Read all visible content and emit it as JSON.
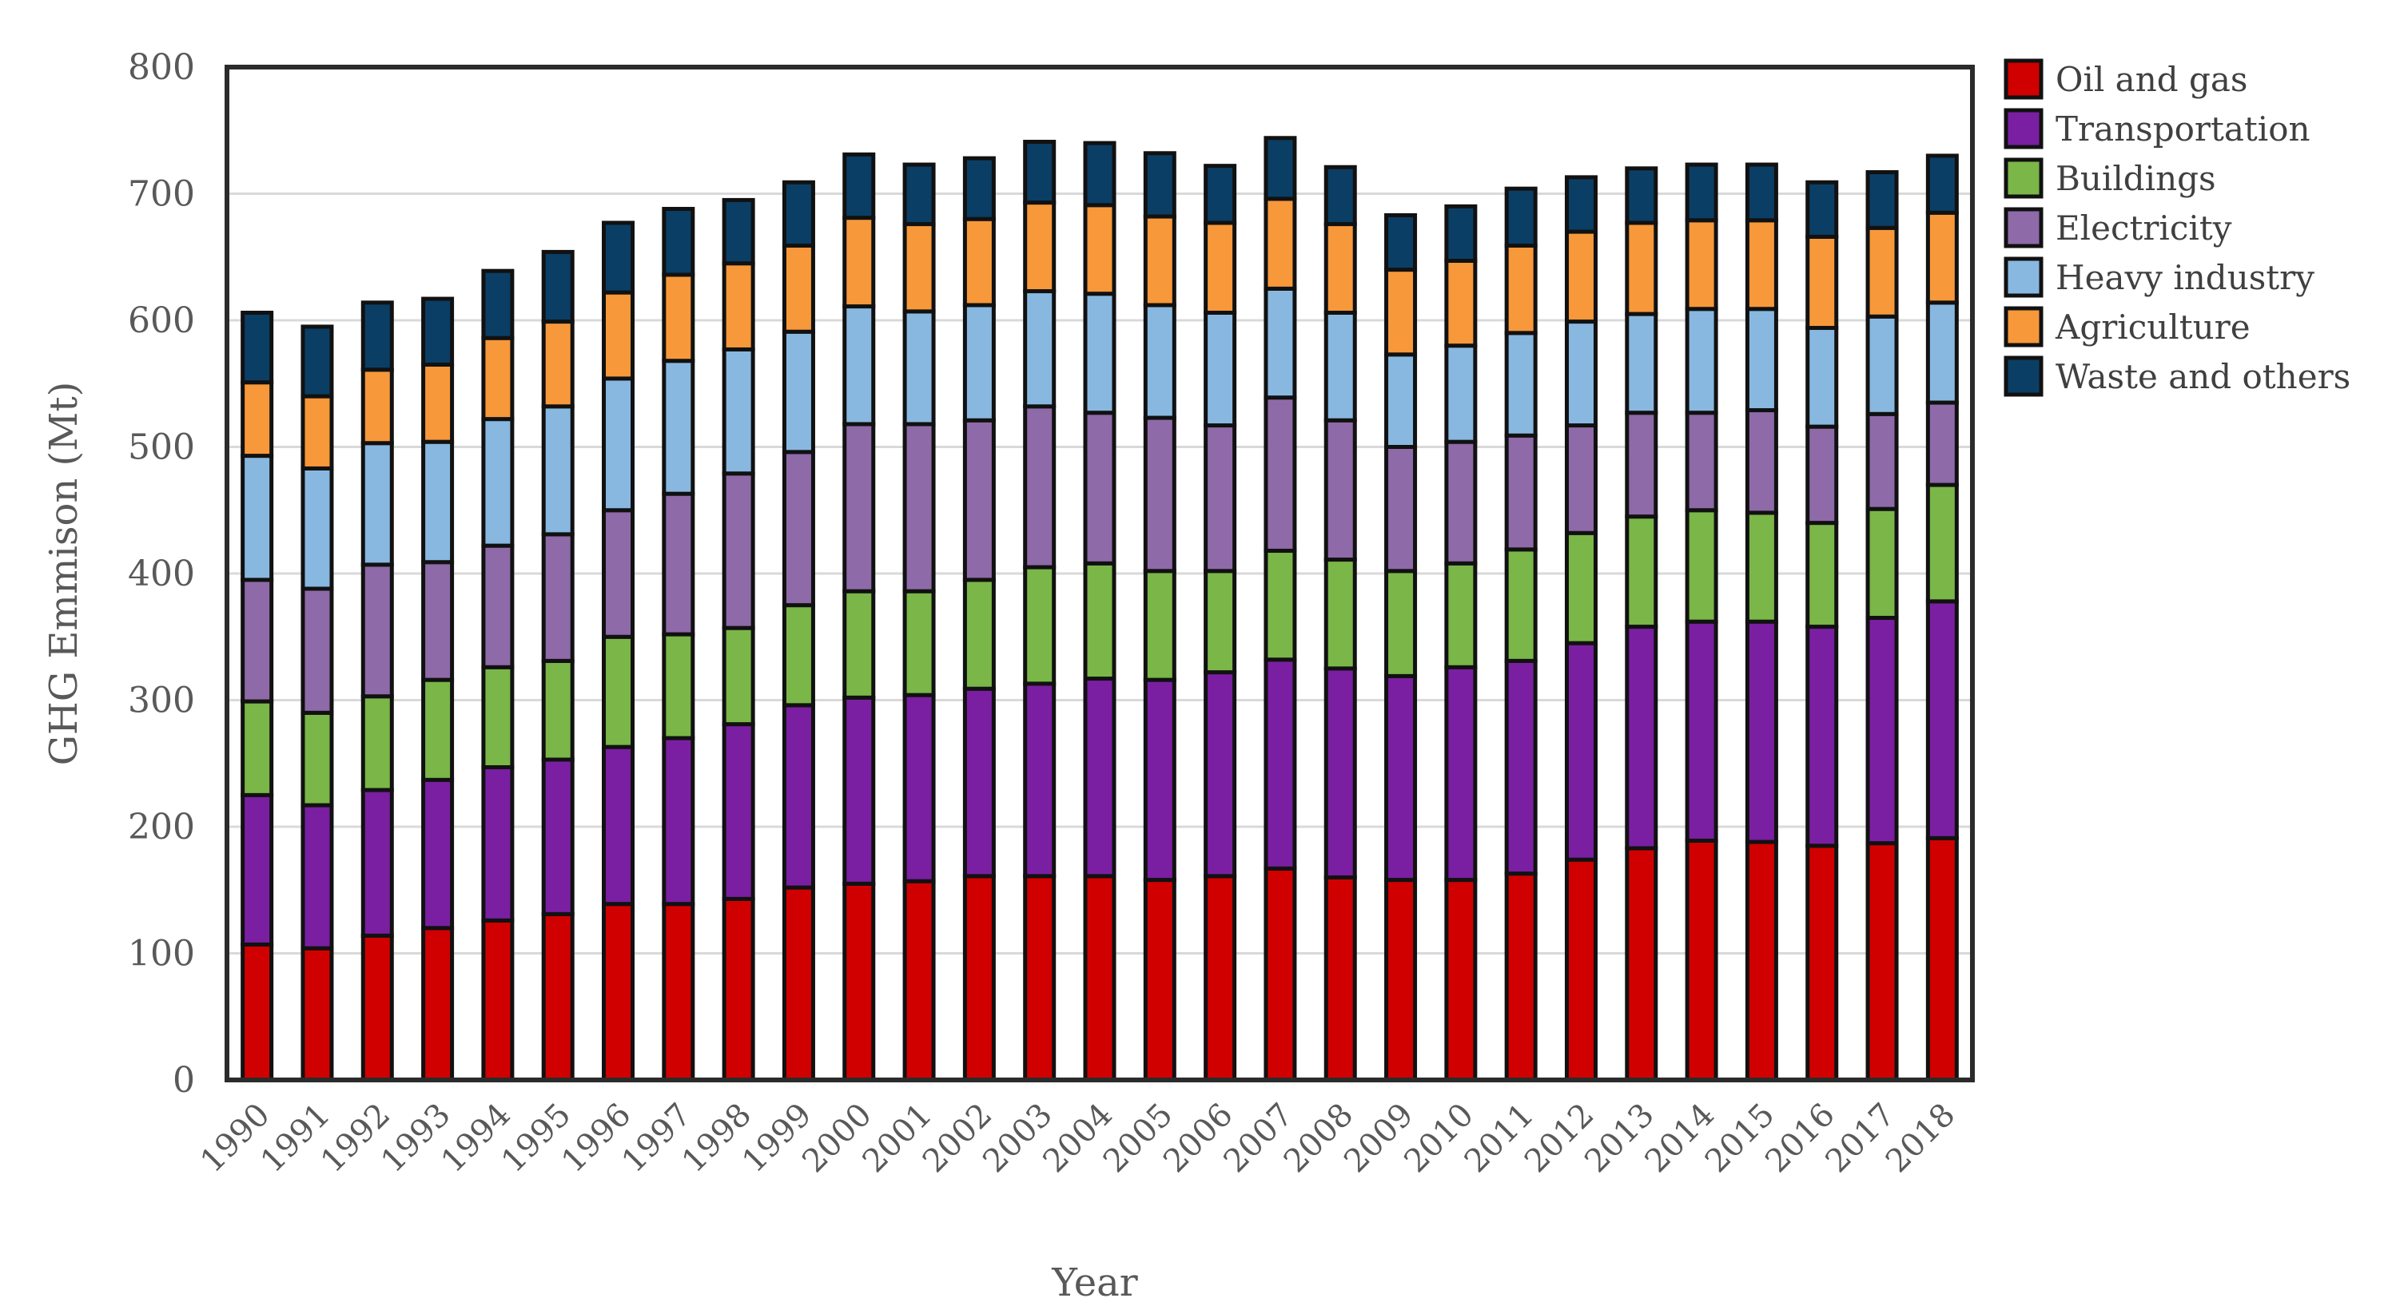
{
  "chart_data": {
    "type": "bar",
    "stacked": true,
    "title": "",
    "xlabel": "Year",
    "ylabel": "GHG Emmison (Mt)",
    "ylim": [
      0,
      800
    ],
    "yticks": [
      0,
      100,
      200,
      300,
      400,
      500,
      600,
      700,
      800
    ],
    "grid": true,
    "legend_position": "right",
    "categories": [
      "1990",
      "1991",
      "1992",
      "1993",
      "1994",
      "1995",
      "1996",
      "1997",
      "1998",
      "1999",
      "2000",
      "2001",
      "2002",
      "2003",
      "2004",
      "2005",
      "2006",
      "2007",
      "2008",
      "2009",
      "2010",
      "2011",
      "2012",
      "2013",
      "2014",
      "2015",
      "2016",
      "2017",
      "2018"
    ],
    "series": [
      {
        "name": "Oil and gas",
        "color": "#d00000",
        "values": [
          107,
          104,
          114,
          120,
          126,
          131,
          139,
          139,
          143,
          152,
          155,
          157,
          161,
          161,
          161,
          158,
          161,
          167,
          160,
          158,
          158,
          163,
          174,
          183,
          189,
          188,
          185,
          187,
          191
        ]
      },
      {
        "name": "Transportation",
        "color": "#7a1fa2",
        "values": [
          118,
          113,
          115,
          117,
          121,
          122,
          124,
          131,
          138,
          144,
          147,
          147,
          148,
          152,
          156,
          158,
          161,
          165,
          165,
          161,
          168,
          168,
          171,
          175,
          173,
          174,
          173,
          178,
          187
        ]
      },
      {
        "name": "Buildings",
        "color": "#7ab648",
        "values": [
          74,
          73,
          74,
          79,
          79,
          78,
          87,
          82,
          76,
          79,
          84,
          82,
          86,
          92,
          91,
          86,
          80,
          86,
          86,
          83,
          82,
          88,
          87,
          87,
          88,
          86,
          82,
          86,
          92
        ]
      },
      {
        "name": "Electricity",
        "color": "#8e6aa8",
        "values": [
          96,
          98,
          104,
          93,
          96,
          100,
          100,
          111,
          122,
          121,
          132,
          132,
          126,
          127,
          119,
          121,
          115,
          121,
          110,
          98,
          96,
          90,
          85,
          82,
          77,
          81,
          76,
          75,
          65
        ]
      },
      {
        "name": "Heavy industry",
        "color": "#88b8e0",
        "values": [
          98,
          95,
          96,
          95,
          100,
          101,
          104,
          105,
          98,
          95,
          93,
          89,
          91,
          91,
          94,
          89,
          89,
          86,
          85,
          73,
          76,
          81,
          82,
          78,
          82,
          80,
          78,
          77,
          79
        ]
      },
      {
        "name": "Agriculture",
        "color": "#f7983a",
        "values": [
          58,
          57,
          58,
          61,
          64,
          67,
          68,
          68,
          68,
          68,
          70,
          69,
          68,
          70,
          70,
          70,
          71,
          71,
          70,
          67,
          67,
          69,
          71,
          72,
          70,
          70,
          72,
          70,
          71
        ]
      },
      {
        "name": "Waste and others",
        "color": "#0b3e64",
        "values": [
          55,
          55,
          53,
          52,
          53,
          55,
          55,
          52,
          50,
          50,
          50,
          47,
          48,
          48,
          49,
          50,
          45,
          48,
          45,
          43,
          43,
          45,
          43,
          43,
          44,
          44,
          43,
          44,
          45
        ]
      }
    ]
  }
}
